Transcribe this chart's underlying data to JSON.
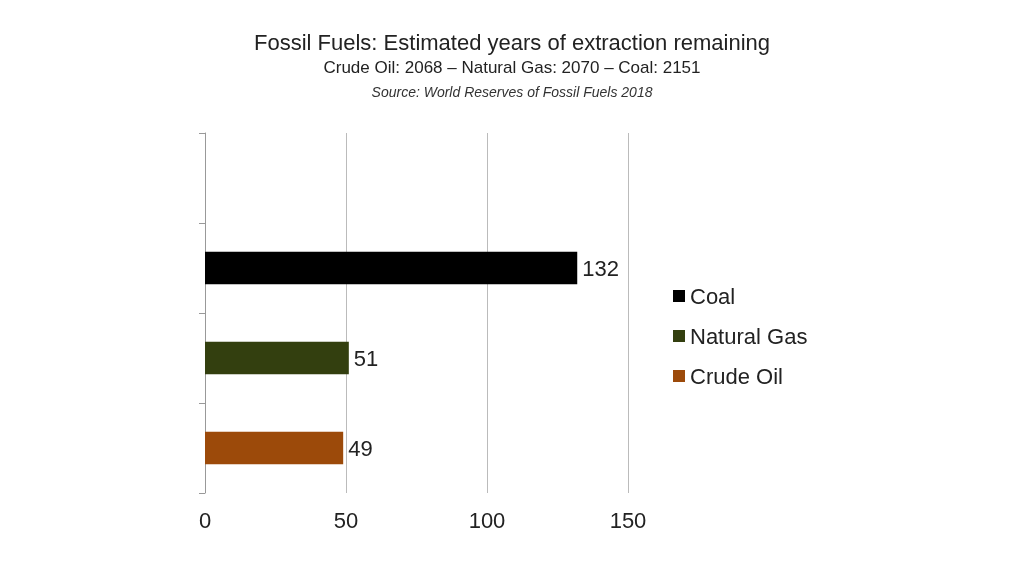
{
  "chart_data": {
    "type": "bar",
    "orientation": "horizontal",
    "stacked": true,
    "title": "Fossil Fuels: Estimated years of extraction remaining",
    "subtitle": "Crude Oil: 2068 – Natural Gas: 2070 – Coal: 2151",
    "annotations": [
      "Source: World Reserves of Fossil Fuels 2018"
    ],
    "categories": [
      null,
      null,
      null,
      null
    ],
    "series": [
      {
        "name": "Coal",
        "color": "#000000",
        "values": [
          null,
          132,
          null,
          null
        ]
      },
      {
        "name": "Natural Gas",
        "color": "#333f0f",
        "values": [
          null,
          null,
          51,
          null
        ]
      },
      {
        "name": "Crude Oil",
        "color": "#9c4a0a",
        "values": [
          null,
          null,
          null,
          49
        ]
      }
    ],
    "xlim": [
      0,
      150
    ],
    "xticks": [
      0,
      50,
      100,
      150
    ],
    "grid": "x",
    "legend": "right",
    "data_labels": true
  }
}
